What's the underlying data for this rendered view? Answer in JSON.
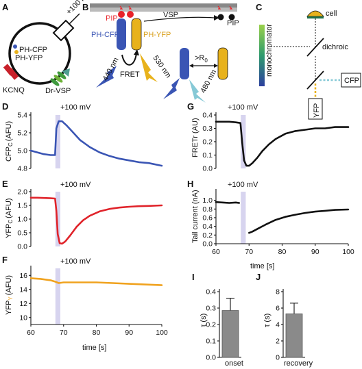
{
  "colors": {
    "cfp": "#3a55b4",
    "yfp": "#e8b21c",
    "pip2": "#e8232a",
    "fretr": "#111111",
    "red_trace": "#e0232a",
    "orange_trace": "#f0a21e",
    "stim": "#c9c6ea",
    "teal": "#86c9d6",
    "kcnq": "#c8212a",
    "vsp": "#3f9a3e",
    "vsp_dark": "#5fa9a0"
  },
  "panels": {
    "A": {
      "letter": "A",
      "voltage": "+100 mV",
      "probe_cfp": "PH-CFP",
      "probe_yfp": "PH-YFP",
      "channel": "KCNQ",
      "enzyme": "Dr-VSP"
    },
    "B": {
      "letter": "B",
      "pip2": "PIP",
      "pip2_sub": "2",
      "pip": "PIP",
      "vsp": "VSP",
      "ph_cfp": "PH-CFP",
      "ph_yfp": "PH-YFP",
      "fret": "FRET",
      "ex_440": "440 nm",
      "em_530": "530 nm",
      "em_480": "480 nm",
      "r0": ">R",
      "r0_sub": "0"
    },
    "C": {
      "letter": "C",
      "cell": "cell",
      "dichroic": "dichroic",
      "monochromator": "monochromator",
      "cfp": "CFP",
      "yfp": "YFP"
    },
    "D": {
      "letter": "D",
      "stim_label": "+100 mV",
      "ylabel": "CFP",
      "ylabel_sub": "C",
      "ylabel_unit": "(AFU)",
      "yticks": [
        "5.4",
        "5.2",
        "5.0",
        "4.8"
      ]
    },
    "E": {
      "letter": "E",
      "stim_label": "+100 mV",
      "ylabel": "YFP",
      "ylabel_sub": "C",
      "ylabel_unit": "(AFU)",
      "yticks": [
        "2.0",
        "1.5",
        "1.0",
        "0.5",
        "0.0"
      ]
    },
    "F": {
      "letter": "F",
      "stim_label": "+100 mV",
      "ylabel": "YFP",
      "ylabel_sub": "Y",
      "ylabel_unit": "(AFU)",
      "yticks": [
        "16",
        "14",
        "12",
        "10"
      ],
      "xticks": [
        "60",
        "70",
        "80",
        "90",
        "100"
      ],
      "xlabel": "time [s]"
    },
    "G": {
      "letter": "G",
      "stim_label": "+100 mV",
      "ylabel": "FRETr (AU)",
      "yticks": [
        "0.4",
        "0.3",
        "0.2",
        "0.1",
        "0.0"
      ]
    },
    "H": {
      "letter": "H",
      "stim_label": "+100 mV",
      "ylabel": "Tail current (nA)",
      "yticks": [
        "1.0",
        "0.8",
        "0.6",
        "0.4",
        "0.2",
        "0.0"
      ],
      "xticks": [
        "60",
        "70",
        "80",
        "90",
        "100"
      ],
      "xlabel": "time [s]"
    },
    "I": {
      "letter": "I",
      "ylabel": "τ (s)",
      "yticks": [
        "0.4",
        "0.3",
        "0.2",
        "0.1",
        "0.0"
      ],
      "xlabel": "onset"
    },
    "J": {
      "letter": "J",
      "ylabel": "τ (s)",
      "yticks": [
        "8",
        "6",
        "4",
        "2",
        "0"
      ],
      "xlabel": "recovery"
    }
  },
  "chart_data": [
    {
      "panel": "D",
      "type": "line",
      "xlim": [
        60,
        100
      ],
      "ylim": [
        4.8,
        5.4
      ],
      "stim": [
        67.5,
        69
      ],
      "series": [
        {
          "color": "#3a55b4",
          "x": [
            60,
            62,
            64,
            66,
            67.4,
            67.8,
            68.5,
            69.5,
            71,
            73,
            75,
            78,
            81,
            84,
            87,
            90,
            93,
            96,
            100
          ],
          "y": [
            5.0,
            4.98,
            4.96,
            4.95,
            4.95,
            5.25,
            5.33,
            5.33,
            5.28,
            5.2,
            5.12,
            5.04,
            4.98,
            4.94,
            4.91,
            4.89,
            4.87,
            4.86,
            4.83
          ]
        }
      ]
    },
    {
      "panel": "E",
      "type": "line",
      "xlim": [
        60,
        100
      ],
      "ylim": [
        0,
        2.0
      ],
      "stim": [
        67.5,
        69
      ],
      "series": [
        {
          "color": "#e0232a",
          "x": [
            60,
            62,
            64,
            66,
            67.4,
            67.8,
            68.2,
            68.8,
            69.5,
            70.5,
            72,
            74,
            76,
            78,
            81,
            84,
            87,
            90,
            93,
            96,
            100
          ],
          "y": [
            1.78,
            1.78,
            1.77,
            1.76,
            1.75,
            1.3,
            0.45,
            0.12,
            0.1,
            0.18,
            0.4,
            0.72,
            0.96,
            1.12,
            1.28,
            1.37,
            1.42,
            1.45,
            1.47,
            1.48,
            1.5
          ]
        }
      ]
    },
    {
      "panel": "F",
      "type": "line",
      "xlim": [
        60,
        100
      ],
      "ylim": [
        9,
        17
      ],
      "stim": [
        67.5,
        69
      ],
      "series": [
        {
          "color": "#f0a21e",
          "x": [
            60,
            63,
            66,
            67.5,
            68.5,
            70,
            75,
            80,
            85,
            90,
            95,
            100
          ],
          "y": [
            15.6,
            15.5,
            15.3,
            15.1,
            14.9,
            15.0,
            15.0,
            15.0,
            14.9,
            14.8,
            14.7,
            14.6
          ]
        }
      ]
    },
    {
      "panel": "G",
      "type": "line",
      "xlim": [
        60,
        100
      ],
      "ylim": [
        0,
        0.4
      ],
      "stim": [
        67.5,
        69
      ],
      "series": [
        {
          "color": "#111111",
          "x": [
            60,
            62,
            64,
            66,
            67.4,
            67.9,
            68.5,
            69.2,
            70,
            71,
            72.5,
            74,
            76,
            78,
            81,
            84,
            87,
            90,
            93,
            96,
            100
          ],
          "y": [
            0.35,
            0.35,
            0.35,
            0.345,
            0.34,
            0.2,
            0.06,
            0.02,
            0.02,
            0.04,
            0.08,
            0.13,
            0.18,
            0.22,
            0.26,
            0.28,
            0.29,
            0.3,
            0.3,
            0.31,
            0.31
          ]
        }
      ]
    },
    {
      "panel": "H",
      "type": "line",
      "xlim": [
        60,
        100
      ],
      "ylim": [
        0,
        1.2
      ],
      "stim": [
        67.5,
        69
      ],
      "series": [
        {
          "color": "#111111",
          "x": [
            60,
            62,
            64,
            66,
            67
          ],
          "y": [
            0.96,
            0.95,
            0.94,
            0.95,
            0.94
          ]
        },
        {
          "color": "#111111",
          "x": [
            70,
            71,
            73,
            75,
            78,
            81,
            84,
            87,
            90,
            93,
            96,
            100
          ],
          "y": [
            0.25,
            0.28,
            0.36,
            0.44,
            0.55,
            0.62,
            0.67,
            0.71,
            0.74,
            0.76,
            0.78,
            0.79
          ]
        }
      ]
    },
    {
      "panel": "I",
      "type": "bar",
      "ylim": [
        0,
        0.4
      ],
      "categories": [
        "onset"
      ],
      "values": [
        0.285
      ],
      "errors": [
        0.075
      ]
    },
    {
      "panel": "J",
      "type": "bar",
      "ylim": [
        0,
        8
      ],
      "categories": [
        "recovery"
      ],
      "values": [
        5.3
      ],
      "errors": [
        1.3
      ]
    }
  ]
}
